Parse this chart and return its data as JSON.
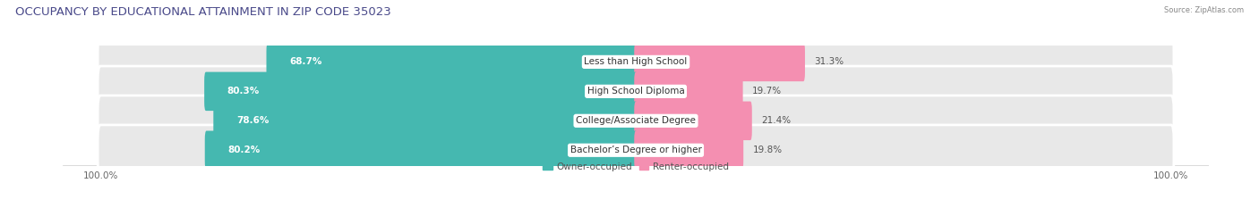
{
  "title": "OCCUPANCY BY EDUCATIONAL ATTAINMENT IN ZIP CODE 35023",
  "source": "Source: ZipAtlas.com",
  "categories": [
    "Less than High School",
    "High School Diploma",
    "College/Associate Degree",
    "Bachelor’s Degree or higher"
  ],
  "owner_pct": [
    68.7,
    80.3,
    78.6,
    80.2
  ],
  "renter_pct": [
    31.3,
    19.7,
    21.4,
    19.8
  ],
  "owner_color": "#45b8b0",
  "renter_color": "#f48fb1",
  "bar_height": 0.72,
  "background_color": "#ffffff",
  "bar_bg_color": "#e8e8e8",
  "title_fontsize": 9.5,
  "label_fontsize": 7.5,
  "pct_fontsize": 7.5,
  "axis_label_fontsize": 7.5,
  "legend_fontsize": 7.5,
  "title_color": "#4a4a8a",
  "pct_color_owner": "#ffffff",
  "pct_color_renter": "#555555",
  "cat_label_color": "#333333"
}
